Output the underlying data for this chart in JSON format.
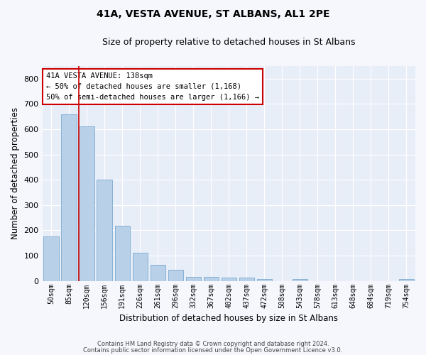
{
  "title1": "41A, VESTA AVENUE, ST ALBANS, AL1 2PE",
  "title2": "Size of property relative to detached houses in St Albans",
  "xlabel": "Distribution of detached houses by size in St Albans",
  "ylabel": "Number of detached properties",
  "bar_color": "#b8d0e8",
  "bar_edge_color": "#7aaad0",
  "background_color": "#e8eef8",
  "grid_color": "#ffffff",
  "categories": [
    "50sqm",
    "85sqm",
    "120sqm",
    "156sqm",
    "191sqm",
    "226sqm",
    "261sqm",
    "296sqm",
    "332sqm",
    "367sqm",
    "402sqm",
    "437sqm",
    "472sqm",
    "508sqm",
    "543sqm",
    "578sqm",
    "613sqm",
    "648sqm",
    "684sqm",
    "719sqm",
    "754sqm"
  ],
  "values": [
    175,
    660,
    610,
    400,
    218,
    110,
    63,
    45,
    16,
    15,
    13,
    12,
    8,
    0,
    8,
    0,
    0,
    0,
    0,
    0,
    7
  ],
  "ylim": [
    0,
    850
  ],
  "yticks": [
    0,
    100,
    200,
    300,
    400,
    500,
    600,
    700,
    800
  ],
  "annotation_line1": "41A VESTA AVENUE: 138sqm",
  "annotation_line2": "← 50% of detached houses are smaller (1,168)",
  "annotation_line3": "50% of semi-detached houses are larger (1,166) →",
  "vline_x": 1.55,
  "vline_color": "#cc0000",
  "box_color": "#cc0000",
  "footer1": "Contains HM Land Registry data © Crown copyright and database right 2024.",
  "footer2": "Contains public sector information licensed under the Open Government Licence v3.0.",
  "fig_bg": "#f5f7fc"
}
